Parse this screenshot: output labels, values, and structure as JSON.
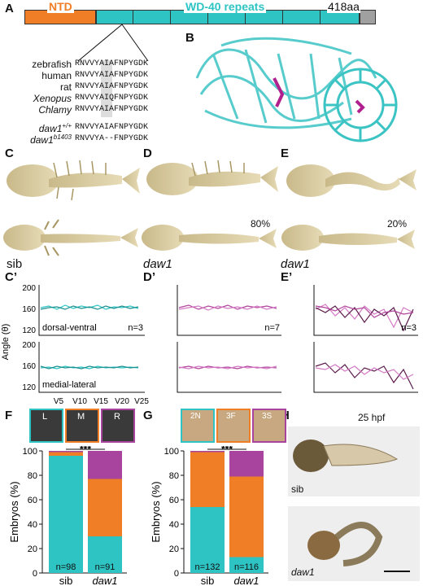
{
  "panels": {
    "A": "A",
    "B": "B",
    "C": "C",
    "D": "D",
    "E": "E",
    "Cp": "C’",
    "Dp": "D’",
    "Ep": "E’",
    "F": "F",
    "G": "G",
    "H": "H"
  },
  "domain_bar": {
    "ntd": "NTD",
    "wd40": "WD-40 repeats",
    "length": "418aa",
    "colors": {
      "ntd": "#f07e26",
      "wd40": "#2ec4c4",
      "tail": "#a0a0a0"
    }
  },
  "alignment": {
    "species": [
      {
        "name": "zebrafish",
        "seq": "RNVVYAIAFNPYGDK"
      },
      {
        "name": "human",
        "seq": "RNVVYAIAFNPYGDK"
      },
      {
        "name": "rat",
        "seq": "RNVVYAIAFNPYGDK"
      },
      {
        "name": "Xenopus",
        "seq": "RNVVYAIQFNPYGDK"
      },
      {
        "name": "Chlamy",
        "seq": "RNVVYAIAFNPYGDK"
      }
    ],
    "alleles": [
      {
        "name": "daw1",
        "sup": "+/+",
        "seq": "RNVVYAIAFNPYGDK"
      },
      {
        "name": "daw1",
        "sup": "b1403",
        "seq": "RNVVYA--FNPYGDK"
      }
    ]
  },
  "skeleton_labels": {
    "sib": "sib",
    "daw1_d": "daw1",
    "daw1_e": "daw1",
    "pct_d": "80%",
    "pct_e": "20%"
  },
  "angle_plots": {
    "ylabel": "Angle (θ)",
    "yticks": [
      "200",
      "160",
      "120"
    ],
    "row1_label": "dorsal-ventral",
    "row2_label": "medial-lateral",
    "n": [
      "n=3",
      "n=7",
      "n=3"
    ],
    "xticks": [
      "V5",
      "V10",
      "V15",
      "V20",
      "V25"
    ],
    "colors": {
      "sib": "#2ec4c4",
      "daw1": "#b0449a",
      "daw1_dark": "#5a1a4a"
    }
  },
  "chart_data": [
    {
      "type": "bar",
      "title": "",
      "ylabel": "Embryos (%)",
      "categories": [
        "sib",
        "daw1"
      ],
      "series": [
        {
          "name": "L",
          "values": [
            96,
            30
          ]
        },
        {
          "name": "M",
          "values": [
            3,
            47
          ]
        },
        {
          "name": "R",
          "values": [
            1,
            23
          ]
        }
      ],
      "n_labels": [
        "n=98",
        "n=91"
      ],
      "significance": "***",
      "ylim": [
        0,
        100
      ],
      "inset_labels": [
        "L",
        "M",
        "R"
      ]
    },
    {
      "type": "bar",
      "title": "",
      "ylabel": "Embryos (%)",
      "categories": [
        "sib",
        "daw1"
      ],
      "series": [
        {
          "name": "2N",
          "values": [
            54,
            13
          ]
        },
        {
          "name": "3F",
          "values": [
            45,
            66
          ]
        },
        {
          "name": "3S",
          "values": [
            1,
            21
          ]
        }
      ],
      "n_labels": [
        "n=132",
        "n=116"
      ],
      "significance": "***",
      "ylim": [
        0,
        100
      ],
      "inset_labels": [
        "2N",
        "3F",
        "3S"
      ]
    }
  ],
  "chart_colors": {
    "teal": "#2ec4c4",
    "orange": "#f07e26",
    "purple": "#a8449e"
  },
  "yticks_bar": [
    "0",
    "20",
    "40",
    "60",
    "80",
    "100"
  ],
  "embryo": {
    "stage": "25 hpf",
    "top": "sib",
    "bottom": "daw1"
  }
}
